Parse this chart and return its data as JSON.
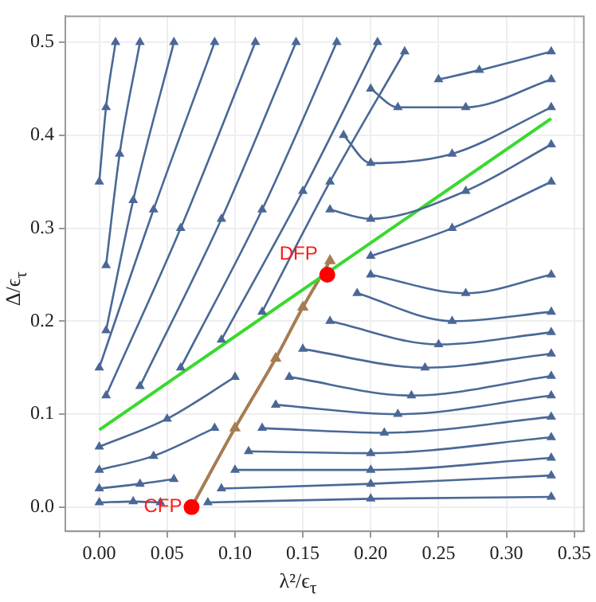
{
  "chart_data": {
    "type": "line",
    "xlabel": "λ²/ϵ$_{τ}$",
    "ylabel": "Δ/ϵ$_{τ}$",
    "xlim": [
      -0.025,
      0.357
    ],
    "ylim": [
      -0.026,
      0.528
    ],
    "xticks": [
      {
        "value": 0,
        "label": "0.00"
      },
      0.05,
      {
        "value": 0.1,
        "label": "0.10"
      },
      0.15,
      {
        "value": 0.2,
        "label": "0.20"
      },
      0.25,
      {
        "value": 0.3,
        "label": "0.30"
      },
      0.35
    ],
    "yticks": [
      {
        "value": 0,
        "label": "0.0"
      },
      0.1,
      0.2,
      0.3,
      0.4,
      0.5
    ],
    "grid": true,
    "legend": false,
    "annotations": [
      {
        "text": "DFP",
        "x": 0.168,
        "y": 0.25
      },
      {
        "text": "CFP",
        "x": 0.068,
        "y": 0
      }
    ],
    "series": [
      {
        "type": "line",
        "color": "#4a6896",
        "marker": "triangle",
        "x": [
          0.0,
          0.005,
          0.012
        ],
        "values": [
          0.35,
          0.43,
          0.5
        ]
      },
      {
        "type": "line",
        "color": "#4a6896",
        "marker": "triangle",
        "x": [
          0.005,
          0.015,
          0.03
        ],
        "values": [
          0.26,
          0.38,
          0.5
        ]
      },
      {
        "type": "line",
        "color": "#4a6896",
        "marker": "triangle",
        "x": [
          0.005,
          0.025,
          0.055
        ],
        "values": [
          0.19,
          0.33,
          0.5
        ]
      },
      {
        "type": "line",
        "color": "#4a6896",
        "marker": "triangle",
        "x": [
          0.0,
          0.04,
          0.085
        ],
        "values": [
          0.15,
          0.32,
          0.5
        ]
      },
      {
        "type": "line",
        "color": "#4a6896",
        "marker": "triangle",
        "x": [
          0.005,
          0.06,
          0.115
        ],
        "values": [
          0.12,
          0.3,
          0.5
        ]
      },
      {
        "type": "line",
        "color": "#4a6896",
        "marker": "triangle",
        "x": [
          0.03,
          0.09,
          0.145
        ],
        "values": [
          0.13,
          0.31,
          0.5
        ]
      },
      {
        "type": "line",
        "color": "#4a6896",
        "marker": "triangle",
        "x": [
          0.06,
          0.12,
          0.175
        ],
        "values": [
          0.15,
          0.32,
          0.5
        ]
      },
      {
        "type": "line",
        "color": "#4a6896",
        "marker": "triangle",
        "x": [
          0.09,
          0.15,
          0.205
        ],
        "values": [
          0.18,
          0.34,
          0.5
        ]
      },
      {
        "type": "line",
        "color": "#4a6896",
        "marker": "triangle",
        "x": [
          0.12,
          0.17,
          0.225
        ],
        "values": [
          0.21,
          0.35,
          0.49
        ]
      },
      {
        "type": "line",
        "color": "#4a6896",
        "marker": "triangle",
        "x": [
          0.333,
          0.28,
          0.25
        ],
        "values": [
          0.49,
          0.47,
          0.46
        ]
      },
      {
        "type": "line",
        "color": "#4a6896",
        "marker": "triangle",
        "x": [
          0.333,
          0.27,
          0.22,
          0.2
        ],
        "values": [
          0.46,
          0.43,
          0.43,
          0.45
        ]
      },
      {
        "type": "line",
        "color": "#4a6896",
        "marker": "triangle",
        "x": [
          0.333,
          0.26,
          0.2,
          0.18
        ],
        "values": [
          0.43,
          0.38,
          0.37,
          0.4
        ]
      },
      {
        "type": "line",
        "color": "#4a6896",
        "marker": "triangle",
        "x": [
          0.333,
          0.27,
          0.2,
          0.17
        ],
        "values": [
          0.39,
          0.34,
          0.31,
          0.32
        ]
      },
      {
        "type": "line",
        "color": "#4a6896",
        "marker": "triangle",
        "x": [
          0.333,
          0.26,
          0.2
        ],
        "values": [
          0.35,
          0.3,
          0.27
        ]
      },
      {
        "type": "line",
        "color": "#4a6896",
        "marker": "triangle",
        "x": [
          0.0,
          0.05,
          0.1
        ],
        "values": [
          0.065,
          0.095,
          0.14
        ]
      },
      {
        "type": "line",
        "color": "#4a6896",
        "marker": "triangle",
        "x": [
          0.0,
          0.04,
          0.085
        ],
        "values": [
          0.04,
          0.055,
          0.085
        ]
      },
      {
        "type": "line",
        "color": "#4a6896",
        "marker": "triangle",
        "x": [
          0.0,
          0.03,
          0.055
        ],
        "values": [
          0.02,
          0.025,
          0.03
        ]
      },
      {
        "type": "line",
        "color": "#4a6896",
        "marker": "triangle",
        "x": [
          0.0,
          0.025,
          0.045
        ],
        "values": [
          0.005,
          0.006,
          0.005
        ]
      },
      {
        "type": "line",
        "color": "#4a6896",
        "marker": "triangle",
        "x": [
          0.333,
          0.2,
          0.08
        ],
        "values": [
          0.011,
          0.009,
          0.005
        ]
      },
      {
        "type": "line",
        "color": "#4a6896",
        "marker": "triangle",
        "x": [
          0.333,
          0.2,
          0.09
        ],
        "values": [
          0.034,
          0.025,
          0.02
        ]
      },
      {
        "type": "line",
        "color": "#4a6896",
        "marker": "triangle",
        "x": [
          0.333,
          0.2,
          0.1
        ],
        "values": [
          0.053,
          0.04,
          0.04
        ]
      },
      {
        "type": "line",
        "color": "#4a6896",
        "marker": "triangle",
        "x": [
          0.333,
          0.2,
          0.11
        ],
        "values": [
          0.075,
          0.058,
          0.06
        ]
      },
      {
        "type": "line",
        "color": "#4a6896",
        "marker": "triangle",
        "x": [
          0.333,
          0.21,
          0.12
        ],
        "values": [
          0.097,
          0.08,
          0.085
        ]
      },
      {
        "type": "line",
        "color": "#4a6896",
        "marker": "triangle",
        "x": [
          0.333,
          0.22,
          0.13
        ],
        "values": [
          0.12,
          0.1,
          0.11
        ]
      },
      {
        "type": "line",
        "color": "#4a6896",
        "marker": "triangle",
        "x": [
          0.333,
          0.23,
          0.14
        ],
        "values": [
          0.141,
          0.12,
          0.14
        ]
      },
      {
        "type": "line",
        "color": "#4a6896",
        "marker": "triangle",
        "x": [
          0.333,
          0.24,
          0.15
        ],
        "values": [
          0.165,
          0.15,
          0.17
        ]
      },
      {
        "type": "line",
        "color": "#4a6896",
        "marker": "triangle",
        "x": [
          0.333,
          0.25,
          0.17
        ],
        "values": [
          0.188,
          0.175,
          0.2
        ]
      },
      {
        "type": "line",
        "color": "#4a6896",
        "marker": "triangle",
        "x": [
          0.333,
          0.26,
          0.19
        ],
        "values": [
          0.21,
          0.2,
          0.23
        ]
      },
      {
        "type": "line",
        "color": "#4a6896",
        "marker": "triangle",
        "x": [
          0.333,
          0.27,
          0.2
        ],
        "values": [
          0.25,
          0.23,
          0.25
        ]
      },
      {
        "color": "#39d92e",
        "marker": "none",
        "x": [
          0.0,
          0.333
        ],
        "values": [
          0.083,
          0.418
        ]
      },
      {
        "type": "line",
        "color": "#a67c52",
        "marker": "triangle",
        "x": [
          0.068,
          0.1,
          0.13,
          0.15,
          0.17
        ],
        "values": [
          0.0,
          0.085,
          0.16,
          0.215,
          0.265
        ]
      },
      {
        "type": "scatter",
        "color": "#ff0000",
        "marker": "circle",
        "x": [
          0.068,
          0.168
        ],
        "values": [
          0.0,
          0.25
        ]
      }
    ]
  }
}
